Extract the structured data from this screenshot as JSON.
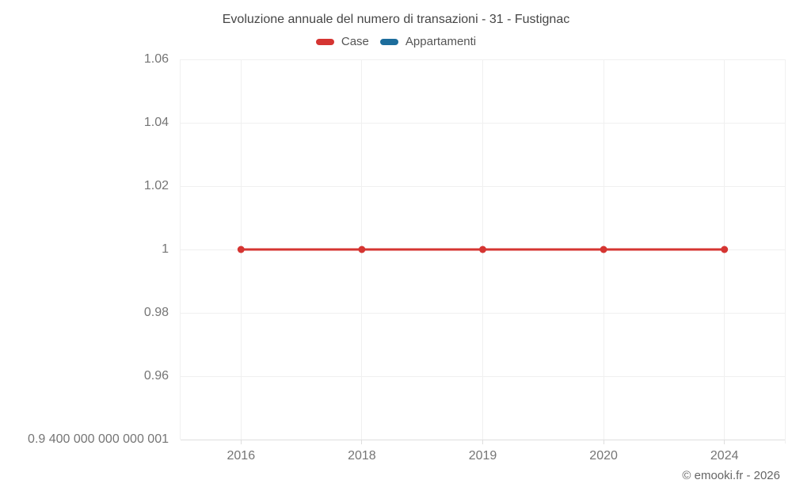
{
  "title": "Evoluzione annuale del numero di transazioni - 31 - Fustignac",
  "legend": {
    "items": [
      {
        "label": "Case",
        "color": "#d53532"
      },
      {
        "label": "Appartamenti",
        "color": "#1d6d9c"
      }
    ]
  },
  "copyright": "© emooki.fr - 2026",
  "chart_data": {
    "type": "line",
    "title": "Evoluzione annuale del numero di transazioni - 31 - Fustignac",
    "categories": [
      "2016",
      "2018",
      "2019",
      "2020",
      "2024"
    ],
    "series": [
      {
        "name": "Case",
        "color": "#d53532",
        "values": [
          1,
          1,
          1,
          1,
          1
        ]
      },
      {
        "name": "Appartamenti",
        "color": "#1d6d9c",
        "values": []
      }
    ],
    "xlabel": "",
    "ylabel": "",
    "ylim": [
      0.94,
      1.06
    ],
    "grid": true,
    "legend_position": "top",
    "y_axis": {
      "min": 0.94,
      "max": 1.06,
      "ticks": [
        {
          "value": 1.06,
          "label": "1.06"
        },
        {
          "value": 1.04,
          "label": "1.04"
        },
        {
          "value": 1.02,
          "label": "1.02"
        },
        {
          "value": 1.0,
          "label": "1"
        },
        {
          "value": 0.98,
          "label": "0.98"
        },
        {
          "value": 0.96,
          "label": "0.96"
        },
        {
          "value": 0.9400000000000001,
          "label": "0.9 400 000 000 000 001"
        }
      ]
    }
  },
  "colors": {
    "background": "#ffffff",
    "grid": "#f0f0f0",
    "axis": "#dedede",
    "tick_text": "#757575",
    "title_text": "#464646",
    "legend_text": "#555555",
    "copyright_text": "#666666"
  }
}
